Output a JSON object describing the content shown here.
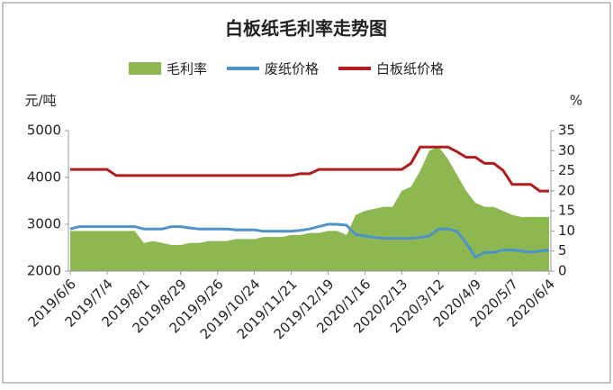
{
  "chart_data": {
    "type": "line",
    "title": "白板纸毛利率走势图",
    "ylabel": "元/吨",
    "y2label": "%",
    "categories": [
      "2019/6/6",
      null,
      null,
      null,
      "2019/7/4",
      null,
      null,
      null,
      "2019/8/1",
      null,
      null,
      null,
      "2019/8/29",
      null,
      null,
      null,
      "2019/9/26",
      null,
      null,
      null,
      "2019/10/24",
      null,
      null,
      null,
      "2019/11/21",
      null,
      null,
      null,
      "2019/12/19",
      null,
      null,
      null,
      "2020/1/16",
      null,
      null,
      null,
      "2020/2/13",
      null,
      null,
      null,
      "2020/3/12",
      null,
      null,
      null,
      "2020/4/9",
      null,
      null,
      null,
      "2020/5/7",
      null,
      null,
      null,
      "2020/6/4"
    ],
    "series": [
      {
        "name": "毛利率",
        "type": "area",
        "axis": "y2",
        "color": "#8db851",
        "values": [
          10,
          10,
          10,
          10,
          10,
          10,
          10,
          10,
          7,
          7.5,
          7,
          6.5,
          6.5,
          7,
          7,
          7.5,
          7.5,
          7.5,
          8,
          8,
          8,
          8.5,
          8.5,
          8.5,
          9,
          9,
          9.5,
          9.5,
          10,
          10,
          9,
          14,
          15,
          15.5,
          16,
          16,
          20,
          21,
          25,
          30,
          31,
          28,
          24,
          20,
          17,
          16,
          16,
          15,
          14,
          13.5,
          13.5,
          13.5,
          13.5
        ]
      },
      {
        "name": "废纸价格",
        "type": "line",
        "color": "#4f93c9",
        "values": [
          2900,
          2950,
          2950,
          2950,
          2950,
          2950,
          2950,
          2950,
          2900,
          2900,
          2900,
          2950,
          2950,
          2920,
          2900,
          2900,
          2900,
          2900,
          2880,
          2880,
          2880,
          2850,
          2850,
          2850,
          2850,
          2870,
          2900,
          2950,
          3000,
          3000,
          2980,
          2780,
          2750,
          2720,
          2700,
          2700,
          2700,
          2700,
          2720,
          2750,
          2900,
          2900,
          2850,
          2600,
          2300,
          2400,
          2400,
          2450,
          2450,
          2430,
          2400,
          2430,
          2450
        ]
      },
      {
        "name": "白板纸价格",
        "type": "line",
        "color": "#b01c1c",
        "values": [
          4170,
          4170,
          4170,
          4170,
          4170,
          4040,
          4040,
          4040,
          4040,
          4040,
          4040,
          4040,
          4040,
          4040,
          4040,
          4040,
          4040,
          4040,
          4040,
          4040,
          4040,
          4040,
          4040,
          4040,
          4040,
          4080,
          4080,
          4170,
          4170,
          4170,
          4170,
          4170,
          4170,
          4170,
          4170,
          4170,
          4170,
          4300,
          4650,
          4650,
          4650,
          4650,
          4550,
          4430,
          4430,
          4300,
          4300,
          4150,
          3850,
          3850,
          3850,
          3710,
          3710
        ]
      }
    ],
    "ylim": [
      2000,
      5000
    ],
    "yticks": [
      2000,
      3000,
      4000,
      5000
    ],
    "y2lim": [
      0,
      35
    ],
    "y2ticks": [
      0,
      5,
      10,
      15,
      20,
      25,
      30,
      35
    ]
  }
}
